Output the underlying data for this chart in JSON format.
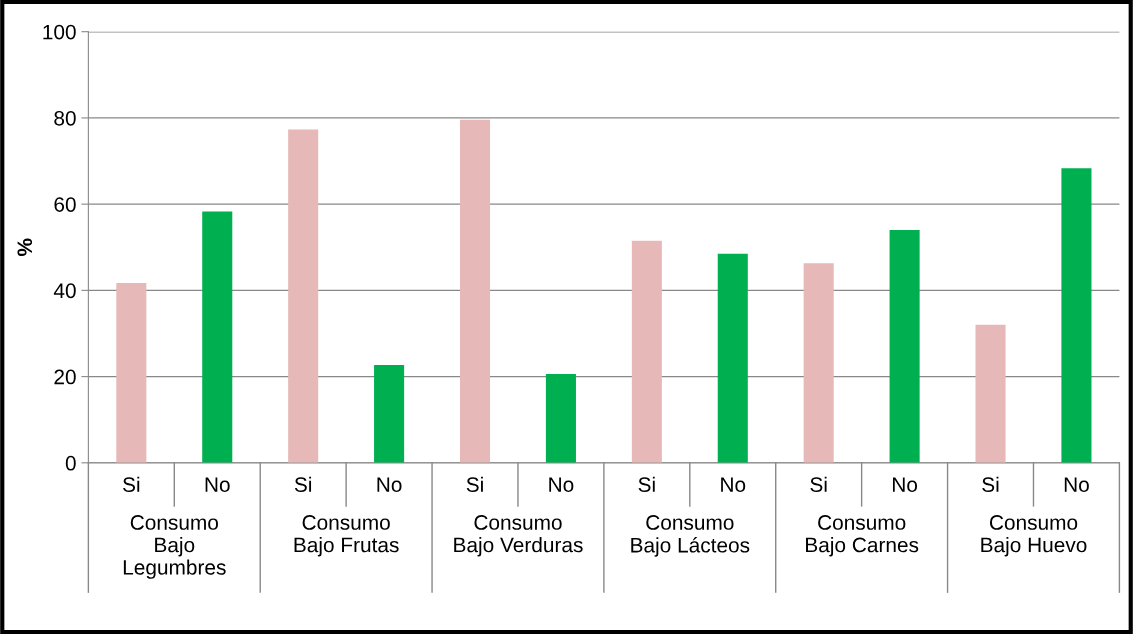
{
  "chart_data": {
    "type": "bar",
    "ylabel": "%",
    "categories": [
      "Si",
      "No",
      "Si",
      "No",
      "Si",
      "No",
      "Si",
      "No",
      "Si",
      "No",
      "Si",
      "No"
    ],
    "values": [
      41.7,
      58.3,
      77.3,
      22.7,
      79.6,
      20.6,
      51.5,
      48.5,
      46.3,
      54.0,
      32.0,
      68.3
    ],
    "colors": [
      "#e6b9b8",
      "#00b050",
      "#e6b9b8",
      "#00b050",
      "#e6b9b8",
      "#00b050",
      "#e6b9b8",
      "#00b050",
      "#e6b9b8",
      "#00b050",
      "#e6b9b8",
      "#00b050"
    ],
    "annotations": [
      "Consumo\nBajo\nLegumbres",
      "Consumo\nBajo Frutas",
      "Consumo\nBajo Verduras",
      "Consumo\nBajo Lácteos",
      "Consumo\nBajo Carnes",
      "Consumo\nBajo Huevo"
    ],
    "ylim": [
      0,
      100
    ],
    "yticks": [
      0,
      20,
      40,
      60,
      80,
      100
    ],
    "grid": "y"
  }
}
